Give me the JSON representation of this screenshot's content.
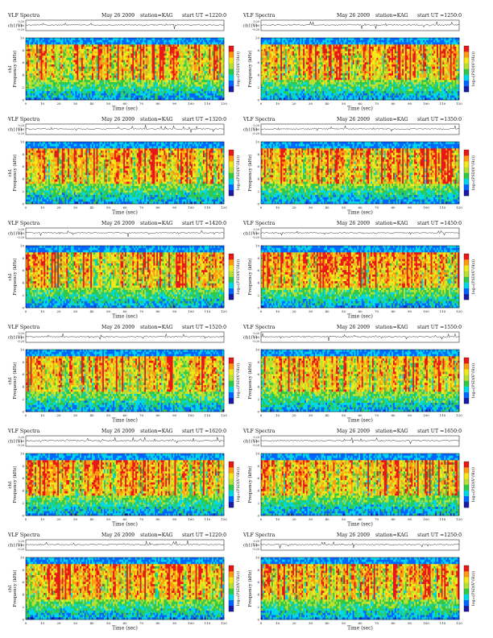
{
  "chart_data": [
    {
      "type": "heatmap",
      "title_left": "VLF Spectra",
      "date": "May 26 2009",
      "station": "station=KAG",
      "start": "start UT =1220:0",
      "trace_label": "ch1(V)",
      "trace_ticks": [
        "0.20",
        "0.00",
        "-0.20"
      ],
      "ylabel": "Frequency (kHz)",
      "ylabel_prefix": "ch1",
      "y_ticks": [
        "0",
        "2",
        "4",
        "6",
        "8",
        "10"
      ],
      "ylim": [
        0,
        10
      ],
      "xlabel": "Time (sec)",
      "x_ticks": [
        "0",
        "10",
        "20",
        "30",
        "40",
        "50",
        "60",
        "70",
        "80",
        "90",
        "100",
        "110",
        "120"
      ],
      "xlim": [
        0,
        120
      ],
      "colorbar_label": "log₁₀(PSD(V²/Hz))",
      "colorscale": [
        "#1a1aa6",
        "#0066ff",
        "#00d8e8",
        "#30c848",
        "#b8e030",
        "#f2e81a",
        "#ff9a10",
        "#e81818"
      ]
    },
    {
      "type": "heatmap",
      "title_left": "VLF Spectra",
      "date": "May 26 2009",
      "station": "station=KAG",
      "start": "start UT =1250:0",
      "trace_label": "ch1(V)",
      "trace_ticks": [
        "0.20",
        "0.00",
        "-0.20"
      ],
      "ylabel": "Frequency (kHz)",
      "ylabel_prefix": "",
      "y_ticks": [
        "0",
        "2",
        "4",
        "6",
        "8",
        "10"
      ],
      "ylim": [
        0,
        10
      ],
      "xlabel": "Time (sec)",
      "x_ticks": [
        "0",
        "10",
        "20",
        "30",
        "40",
        "50",
        "60",
        "70",
        "80",
        "90",
        "100",
        "110",
        "120"
      ],
      "xlim": [
        0,
        120
      ],
      "colorbar_label": "log₁₀(PSD(V²/Hz))",
      "colorscale": [
        "#1a1aa6",
        "#0066ff",
        "#00d8e8",
        "#30c848",
        "#b8e030",
        "#f2e81a",
        "#ff9a10",
        "#e81818"
      ]
    },
    {
      "type": "heatmap",
      "title_left": "VLF Spectra",
      "date": "May 26 2009",
      "station": "station=KAG",
      "start": "start UT =1320:0",
      "trace_label": "ch1(V)",
      "trace_ticks": [
        "0.20",
        "0.00",
        "-0.20"
      ],
      "ylabel": "Frequency (kHz)",
      "ylabel_prefix": "ch1",
      "y_ticks": [
        "0",
        "2",
        "4",
        "6",
        "8",
        "10"
      ],
      "ylim": [
        0,
        10
      ],
      "xlabel": "Time (sec)",
      "x_ticks": [
        "0",
        "10",
        "20",
        "30",
        "40",
        "50",
        "60",
        "70",
        "80",
        "90",
        "100",
        "110",
        "120"
      ],
      "xlim": [
        0,
        120
      ],
      "colorbar_label": "log₁₀(PSD(V²/Hz))",
      "colorscale": [
        "#1a1aa6",
        "#0066ff",
        "#00d8e8",
        "#30c848",
        "#b8e030",
        "#f2e81a",
        "#ff9a10",
        "#e81818"
      ]
    },
    {
      "type": "heatmap",
      "title_left": "VLF Spectra",
      "date": "May 26 2009",
      "station": "station=KAG",
      "start": "start UT =1350:0",
      "trace_label": "ch1(V)",
      "trace_ticks": [
        "0.20",
        "0.00",
        "-0.20"
      ],
      "ylabel": "Frequency (kHz)",
      "ylabel_prefix": "",
      "y_ticks": [
        "0",
        "2",
        "4",
        "6",
        "8",
        "10"
      ],
      "ylim": [
        0,
        10
      ],
      "xlabel": "Time (sec)",
      "x_ticks": [
        "0",
        "10",
        "20",
        "30",
        "40",
        "50",
        "60",
        "70",
        "80",
        "90",
        "100",
        "110",
        "120"
      ],
      "xlim": [
        0,
        120
      ],
      "colorbar_label": "log₁₀(PSD(V²/Hz))",
      "colorscale": [
        "#1a1aa6",
        "#0066ff",
        "#00d8e8",
        "#30c848",
        "#b8e030",
        "#f2e81a",
        "#ff9a10",
        "#e81818"
      ]
    },
    {
      "type": "heatmap",
      "title_left": "VLF Spectra",
      "date": "May 26 2009",
      "station": "station=KAG",
      "start": "start UT =1420:0",
      "trace_label": "ch1(V)",
      "trace_ticks": [
        "0.20",
        "0.00",
        "-0.20"
      ],
      "ylabel": "Frequency (kHz)",
      "ylabel_prefix": "ch1",
      "y_ticks": [
        "0",
        "2",
        "4",
        "6",
        "8",
        "10"
      ],
      "ylim": [
        0,
        10
      ],
      "xlabel": "Time (sec)",
      "x_ticks": [
        "0",
        "10",
        "20",
        "30",
        "40",
        "50",
        "60",
        "70",
        "80",
        "90",
        "100",
        "110",
        "120"
      ],
      "xlim": [
        0,
        120
      ],
      "colorbar_label": "log₁₀(PSD(V²/Hz))",
      "colorscale": [
        "#1a1aa6",
        "#0066ff",
        "#00d8e8",
        "#30c848",
        "#b8e030",
        "#f2e81a",
        "#ff9a10",
        "#e81818"
      ]
    },
    {
      "type": "heatmap",
      "title_left": "VLF Spectra",
      "date": "May 26 2009",
      "station": "station=KAG",
      "start": "start UT =1450:0",
      "trace_label": "ch1(V)",
      "trace_ticks": [
        "0.20",
        "0.00",
        "-0.20"
      ],
      "ylabel": "Frequency (kHz)",
      "ylabel_prefix": "",
      "y_ticks": [
        "0",
        "2",
        "4",
        "6",
        "8",
        "10"
      ],
      "ylim": [
        0,
        10
      ],
      "xlabel": "Time (sec)",
      "x_ticks": [
        "0",
        "10",
        "20",
        "30",
        "40",
        "50",
        "60",
        "70",
        "80",
        "90",
        "100",
        "110",
        "120"
      ],
      "xlim": [
        0,
        120
      ],
      "colorbar_label": "log₁₀(PSD(V²/Hz))",
      "colorscale": [
        "#1a1aa6",
        "#0066ff",
        "#00d8e8",
        "#30c848",
        "#b8e030",
        "#f2e81a",
        "#ff9a10",
        "#e81818"
      ]
    },
    {
      "type": "heatmap",
      "title_left": "VLF Spectra",
      "date": "May 26 2009",
      "station": "station=KAG",
      "start": "start UT =1520:0",
      "trace_label": "ch1(V)",
      "trace_ticks": [
        "0.20",
        "0.00",
        "-0.20"
      ],
      "ylabel": "Frequency (kHz)",
      "ylabel_prefix": "ch1",
      "y_ticks": [
        "0",
        "2",
        "4",
        "6",
        "8",
        "10"
      ],
      "ylim": [
        0,
        10
      ],
      "xlabel": "Time (sec)",
      "x_ticks": [
        "0",
        "10",
        "20",
        "30",
        "40",
        "50",
        "60",
        "70",
        "80",
        "90",
        "100",
        "110",
        "120"
      ],
      "xlim": [
        0,
        120
      ],
      "colorbar_label": "log₁₀(PSD(V²/Hz))",
      "colorscale": [
        "#1a1aa6",
        "#0066ff",
        "#00d8e8",
        "#30c848",
        "#b8e030",
        "#f2e81a",
        "#ff9a10",
        "#e81818"
      ]
    },
    {
      "type": "heatmap",
      "title_left": "VLF Spectra",
      "date": "May 26 2009",
      "station": "station=KAG",
      "start": "start UT =1550:0",
      "trace_label": "ch1(V)",
      "trace_ticks": [
        "0.20",
        "0.00",
        "-0.20"
      ],
      "ylabel": "Frequency (kHz)",
      "ylabel_prefix": "",
      "y_ticks": [
        "0",
        "2",
        "4",
        "6",
        "8",
        "10"
      ],
      "ylim": [
        0,
        10
      ],
      "xlabel": "Time (sec)",
      "x_ticks": [
        "0",
        "10",
        "20",
        "30",
        "40",
        "50",
        "60",
        "70",
        "80",
        "90",
        "100",
        "110",
        "120"
      ],
      "xlim": [
        0,
        120
      ],
      "colorbar_label": "log₁₀(PSD(V²/Hz))",
      "colorscale": [
        "#1a1aa6",
        "#0066ff",
        "#00d8e8",
        "#30c848",
        "#b8e030",
        "#f2e81a",
        "#ff9a10",
        "#e81818"
      ]
    },
    {
      "type": "heatmap",
      "title_left": "VLF Spectra",
      "date": "May 26 2009",
      "station": "station=KAG",
      "start": "start UT =1620:0",
      "trace_label": "ch1(V)",
      "trace_ticks": [
        "0.20",
        "0.00",
        "-0.20"
      ],
      "ylabel": "Frequency (kHz)",
      "ylabel_prefix": "ch1",
      "y_ticks": [
        "0",
        "2",
        "4",
        "6",
        "8",
        "10"
      ],
      "ylim": [
        0,
        10
      ],
      "xlabel": "Time (sec)",
      "x_ticks": [
        "0",
        "10",
        "20",
        "30",
        "40",
        "50",
        "60",
        "70",
        "80",
        "90",
        "100",
        "110",
        "120"
      ],
      "xlim": [
        0,
        120
      ],
      "colorbar_label": "log₁₀(PSD(V²/Hz))",
      "colorscale": [
        "#1a1aa6",
        "#0066ff",
        "#00d8e8",
        "#30c848",
        "#b8e030",
        "#f2e81a",
        "#ff9a10",
        "#e81818"
      ]
    },
    {
      "type": "heatmap",
      "title_left": "VLF Spectra",
      "date": "May 26 2009",
      "station": "station=KAG",
      "start": "start UT =1650:0",
      "trace_label": "ch1(V)",
      "trace_ticks": [
        "0.20",
        "0.00",
        "-0.20"
      ],
      "ylabel": "Frequency (kHz)",
      "ylabel_prefix": "",
      "y_ticks": [
        "0",
        "2",
        "4",
        "6",
        "8",
        "10"
      ],
      "ylim": [
        0,
        10
      ],
      "xlabel": "Time (sec)",
      "x_ticks": [
        "0",
        "10",
        "20",
        "30",
        "40",
        "50",
        "60",
        "70",
        "80",
        "90",
        "100",
        "110",
        "120"
      ],
      "xlim": [
        0,
        120
      ],
      "colorbar_label": "log₁₀(PSD(V²/Hz))",
      "colorscale": [
        "#1a1aa6",
        "#0066ff",
        "#00d8e8",
        "#30c848",
        "#b8e030",
        "#f2e81a",
        "#ff9a10",
        "#e81818"
      ]
    },
    {
      "type": "heatmap",
      "title_left": "VLF Spectra",
      "date": "May 26 2009",
      "station": "station=KAG",
      "start": "start UT =1220:0",
      "trace_label": "ch1(V)",
      "trace_ticks": [
        "0.20",
        "0.00",
        "-0.20"
      ],
      "ylabel": "Frequency (kHz)",
      "ylabel_prefix": "ch1",
      "y_ticks": [
        "0",
        "2",
        "4",
        "6",
        "8",
        "10"
      ],
      "ylim": [
        0,
        10
      ],
      "xlabel": "Time (sec)",
      "x_ticks": [
        "0",
        "10",
        "20",
        "30",
        "40",
        "50",
        "60",
        "70",
        "80",
        "90",
        "100",
        "110",
        "120"
      ],
      "xlim": [
        0,
        120
      ],
      "colorbar_label": "log₁₀(PSD(V²/Hz))",
      "colorscale": [
        "#1a1aa6",
        "#0066ff",
        "#00d8e8",
        "#30c848",
        "#b8e030",
        "#f2e81a",
        "#ff9a10",
        "#e81818"
      ]
    },
    {
      "type": "heatmap",
      "title_left": "VLF Spectra",
      "date": "May 26 2009",
      "station": "station=KAG",
      "start": "start UT =1250:0",
      "trace_label": "ch1(V)",
      "trace_ticks": [
        "0.20",
        "0.00",
        "-0.20"
      ],
      "ylabel": "Frequency (kHz)",
      "ylabel_prefix": "",
      "y_ticks": [
        "0",
        "2",
        "4",
        "6",
        "8",
        "10"
      ],
      "ylim": [
        0,
        10
      ],
      "xlabel": "Time (sec)",
      "x_ticks": [
        "0",
        "10",
        "20",
        "30",
        "40",
        "50",
        "60",
        "70",
        "80",
        "90",
        "100",
        "110",
        "120"
      ],
      "xlim": [
        0,
        120
      ],
      "colorbar_label": "log₁₀(PSD(V²/Hz))",
      "colorscale": [
        "#1a1aa6",
        "#0066ff",
        "#00d8e8",
        "#30c848",
        "#b8e030",
        "#f2e81a",
        "#ff9a10",
        "#e81818"
      ]
    }
  ]
}
